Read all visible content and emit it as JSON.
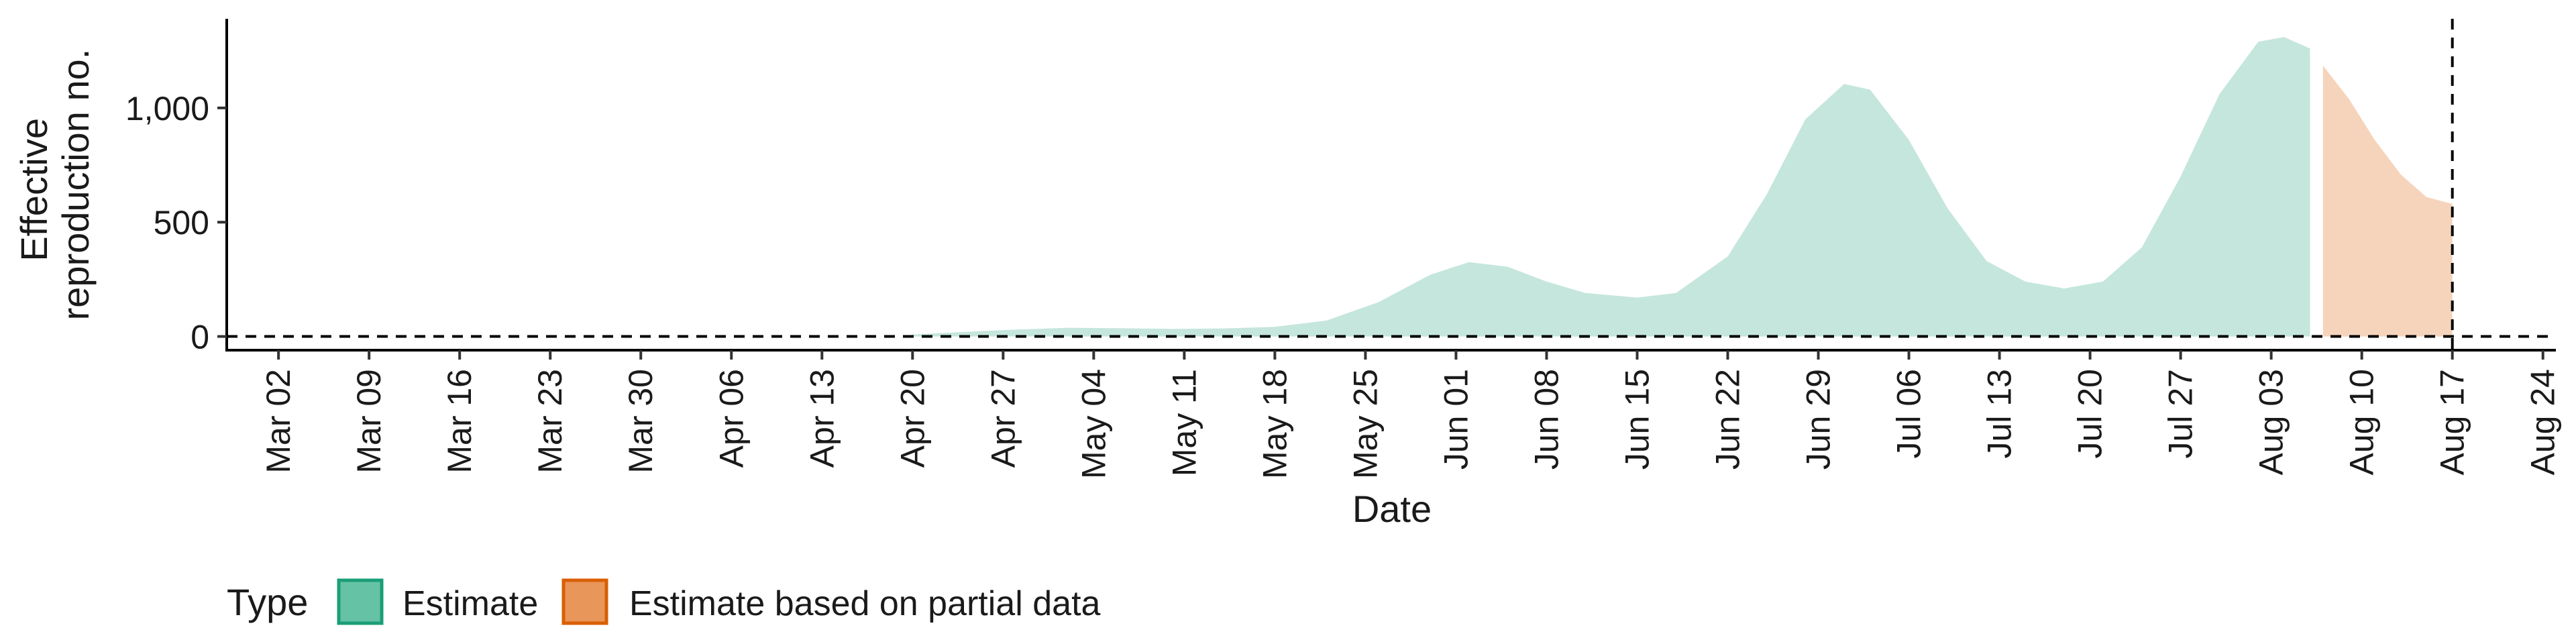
{
  "chart_data": {
    "type": "area",
    "xlabel": "Date",
    "ylabel": [
      "Effective",
      "reproduction no."
    ],
    "x_ticks": [
      "Mar 02",
      "Mar 09",
      "Mar 16",
      "Mar 23",
      "Mar 30",
      "Apr 06",
      "Apr 13",
      "Apr 20",
      "Apr 27",
      "May 04",
      "May 11",
      "May 18",
      "May 25",
      "Jun 01",
      "Jun 08",
      "Jun 15",
      "Jun 22",
      "Jun 29",
      "Jul 06",
      "Jul 13",
      "Jul 20",
      "Jul 27",
      "Aug 03",
      "Aug 10",
      "Aug 17",
      "Aug 24"
    ],
    "y_ticks": [
      0,
      500,
      1000
    ],
    "y_tick_labels": [
      "0",
      "500",
      "1,000"
    ],
    "ylim": [
      -60,
      1390
    ],
    "xlim": [
      "2020-02-27",
      "2020-08-25"
    ],
    "hline_y": 0,
    "vline_x": "2020-08-17",
    "legend": {
      "title": "Type",
      "position": "bottom-left",
      "items": [
        {
          "label": "Estimate",
          "fill": "#66c2a5",
          "stroke": "#1b9e77"
        },
        {
          "label": "Estimate based on partial data",
          "fill": "#e9965a",
          "stroke": "#d95f02"
        }
      ]
    },
    "series": [
      {
        "name": "Estimate",
        "color": "#c5e6dc",
        "x": [
          "2020-04-20",
          "2020-04-24",
          "2020-04-28",
          "2020-05-02",
          "2020-05-06",
          "2020-05-10",
          "2020-05-14",
          "2020-05-18",
          "2020-05-22",
          "2020-05-26",
          "2020-05-30",
          "2020-06-02",
          "2020-06-05",
          "2020-06-08",
          "2020-06-11",
          "2020-06-15",
          "2020-06-18",
          "2020-06-22",
          "2020-06-25",
          "2020-06-28",
          "2020-07-01",
          "2020-07-03",
          "2020-07-06",
          "2020-07-09",
          "2020-07-12",
          "2020-07-15",
          "2020-07-18",
          "2020-07-21",
          "2020-07-24",
          "2020-07-27",
          "2020-07-30",
          "2020-08-02",
          "2020-08-04",
          "2020-08-06"
        ],
        "y_lower": [
          0,
          0,
          0,
          0,
          0,
          0,
          0,
          0,
          0,
          0,
          0,
          0,
          0,
          0,
          0,
          0,
          0,
          0,
          0,
          0,
          0,
          0,
          0,
          0,
          0,
          0,
          0,
          0,
          0,
          0,
          0,
          0,
          0,
          0
        ],
        "y_upper": [
          8,
          20,
          30,
          38,
          36,
          33,
          35,
          42,
          70,
          150,
          270,
          325,
          305,
          240,
          190,
          170,
          190,
          350,
          620,
          950,
          1105,
          1080,
          860,
          560,
          330,
          240,
          210,
          240,
          390,
          700,
          1060,
          1290,
          1310,
          1260
        ]
      },
      {
        "name": "Estimate based on partial data",
        "color": "#f6d4bc",
        "x": [
          "2020-08-07",
          "2020-08-09",
          "2020-08-11",
          "2020-08-13",
          "2020-08-15",
          "2020-08-17"
        ],
        "y_lower": [
          0,
          0,
          0,
          0,
          0,
          0
        ],
        "y_upper": [
          1185,
          1040,
          860,
          710,
          610,
          580
        ]
      }
    ]
  }
}
